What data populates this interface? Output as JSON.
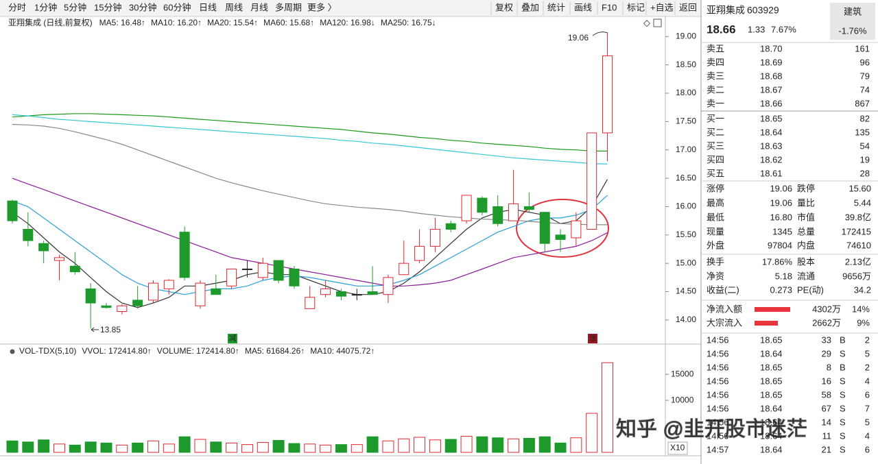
{
  "toolbar": {
    "periods": [
      "分时",
      "1分钟",
      "5分钟",
      "15分钟",
      "30分钟",
      "60分钟",
      "日线",
      "周线",
      "月线",
      "多周期",
      "更多 〉"
    ],
    "actions": [
      "复权",
      "叠加",
      "统计",
      "画线",
      "F10",
      "标记",
      "+自选",
      "返回"
    ]
  },
  "chart_data": [
    {
      "type": "candlestick",
      "title": "亚翔集成 (日线,前复权)",
      "open": [
        16.1,
        15.6,
        15.35,
        15.05,
        14.95,
        14.55,
        14.25,
        14.15,
        14.35,
        14.35,
        14.55,
        15.55,
        14.25,
        14.55,
        14.6,
        14.9,
        14.75,
        15.05,
        14.9,
        14.2,
        14.45,
        14.5,
        14.45,
        14.5,
        14.45,
        14.8,
        15.05,
        15.3,
        15.7,
        15.75,
        16.15,
        16.0,
        15.75,
        16.0,
        15.9,
        15.5,
        15.45,
        15.6,
        17.3
      ],
      "high": [
        16.12,
        15.9,
        15.4,
        15.15,
        15.2,
        14.65,
        14.3,
        14.28,
        14.6,
        14.7,
        14.72,
        15.65,
        14.7,
        14.8,
        14.9,
        15.05,
        15.1,
        15.05,
        14.95,
        14.6,
        14.7,
        14.55,
        14.55,
        14.95,
        14.8,
        15.4,
        15.6,
        15.8,
        15.75,
        16.2,
        16.18,
        16.2,
        16.65,
        16.25,
        15.9,
        15.6,
        15.9,
        17.3,
        19.06
      ],
      "low": [
        15.7,
        15.3,
        15.0,
        14.7,
        14.8,
        13.85,
        14.2,
        14.1,
        14.2,
        14.3,
        14.45,
        14.7,
        14.2,
        14.45,
        14.55,
        14.75,
        14.7,
        14.65,
        14.55,
        14.2,
        14.4,
        14.35,
        14.35,
        14.45,
        14.3,
        14.8,
        15.0,
        15.2,
        15.55,
        15.7,
        15.85,
        15.65,
        15.75,
        15.9,
        15.2,
        15.2,
        15.3,
        15.6,
        16.8
      ],
      "close": [
        15.75,
        15.4,
        15.22,
        15.1,
        14.85,
        14.3,
        14.22,
        14.25,
        14.25,
        14.65,
        14.7,
        14.75,
        14.65,
        14.45,
        14.9,
        14.9,
        15.0,
        14.7,
        14.6,
        14.4,
        14.55,
        14.42,
        14.45,
        14.45,
        14.75,
        15.0,
        15.3,
        15.6,
        15.6,
        16.2,
        15.9,
        15.7,
        16.05,
        15.95,
        15.35,
        15.42,
        15.75,
        17.3,
        18.66
      ],
      "series": [
        {
          "name": "MA5: 16.48",
          "arrow": "↑",
          "color": "#333333",
          "values": [
            15.9,
            15.7,
            15.45,
            15.2,
            15.0,
            14.75,
            14.5,
            14.3,
            14.22,
            14.3,
            14.4,
            14.6,
            14.6,
            14.65,
            14.7,
            14.8,
            14.85,
            14.8,
            14.8,
            14.7,
            14.6,
            14.5,
            14.45,
            14.45,
            14.5,
            14.65,
            14.85,
            15.1,
            15.35,
            15.6,
            15.8,
            15.9,
            15.95,
            15.9,
            15.85,
            15.7,
            15.75,
            16.0,
            16.48
          ]
        },
        {
          "name": "MA10: 16.20",
          "arrow": "↑",
          "color": "#2a9fd6",
          "values": [
            16.1,
            16.0,
            15.8,
            15.6,
            15.4,
            15.2,
            15.0,
            14.8,
            14.65,
            14.55,
            14.5,
            14.45,
            14.5,
            14.55,
            14.55,
            14.6,
            14.7,
            14.75,
            14.78,
            14.75,
            14.7,
            14.65,
            14.6,
            14.6,
            14.62,
            14.7,
            14.8,
            14.95,
            15.1,
            15.25,
            15.4,
            15.55,
            15.65,
            15.75,
            15.8,
            15.8,
            15.85,
            15.95,
            16.2
          ]
        },
        {
          "name": "MA20: 15.54",
          "arrow": "↑",
          "color": "#8b1a9b",
          "values": [
            16.5,
            16.4,
            16.3,
            16.2,
            16.1,
            16.0,
            15.9,
            15.8,
            15.7,
            15.6,
            15.5,
            15.4,
            15.3,
            15.2,
            15.1,
            15.05,
            15.0,
            14.95,
            14.9,
            14.85,
            14.8,
            14.75,
            14.7,
            14.65,
            14.6,
            14.6,
            14.62,
            14.65,
            14.7,
            14.8,
            14.9,
            15.0,
            15.1,
            15.15,
            15.2,
            15.25,
            15.3,
            15.4,
            15.54
          ]
        },
        {
          "name": "MA60: 15.68",
          "arrow": "↑",
          "color": "#888888",
          "values": [
            17.45,
            17.44,
            17.42,
            17.38,
            17.32,
            17.25,
            17.18,
            17.1,
            17.0,
            16.9,
            16.8,
            16.7,
            16.6,
            16.5,
            16.42,
            16.35,
            16.28,
            16.22,
            16.16,
            16.1,
            16.05,
            16.02,
            15.99,
            15.97,
            15.95,
            15.92,
            15.88,
            15.85,
            15.82,
            15.8,
            15.78,
            15.77,
            15.76,
            15.74,
            15.72,
            15.7,
            15.69,
            15.68,
            15.68
          ]
        },
        {
          "name": "MA120: 16.98",
          "arrow": "↓",
          "color": "#1a9a1a",
          "values": [
            17.58,
            17.6,
            17.62,
            17.63,
            17.64,
            17.64,
            17.63,
            17.62,
            17.61,
            17.6,
            17.58,
            17.56,
            17.54,
            17.52,
            17.5,
            17.48,
            17.46,
            17.44,
            17.42,
            17.4,
            17.38,
            17.36,
            17.33,
            17.3,
            17.28,
            17.25,
            17.22,
            17.2,
            17.17,
            17.15,
            17.12,
            17.1,
            17.08,
            17.06,
            17.03,
            17.01,
            17.0,
            16.98,
            16.98
          ]
        },
        {
          "name": "MA250: 16.75",
          "arrow": "↓",
          "color": "#34c8d0",
          "values": [
            17.62,
            17.6,
            17.57,
            17.54,
            17.52,
            17.5,
            17.48,
            17.46,
            17.44,
            17.42,
            17.4,
            17.38,
            17.36,
            17.34,
            17.32,
            17.3,
            17.28,
            17.26,
            17.24,
            17.22,
            17.2,
            17.17,
            17.15,
            17.12,
            17.1,
            17.07,
            17.04,
            17.01,
            16.98,
            16.95,
            16.92,
            16.89,
            16.86,
            16.84,
            16.82,
            16.8,
            16.78,
            16.76,
            16.75
          ]
        }
      ],
      "ylim": [
        13.6,
        19.1
      ],
      "yticks": [
        {
          "value": 14,
          "label": "14.00"
        },
        {
          "value": 14.5,
          "label": "14.50"
        },
        {
          "value": 15,
          "label": "15.00"
        },
        {
          "value": 15.5,
          "label": "15.50"
        },
        {
          "value": 16,
          "label": "16.00"
        },
        {
          "value": 16.5,
          "label": "16.50"
        },
        {
          "value": 17,
          "label": "17.00"
        },
        {
          "value": 17.5,
          "label": "17.50"
        },
        {
          "value": 18,
          "label": "18.00"
        },
        {
          "value": 18.5,
          "label": "18.50"
        },
        {
          "value": 19,
          "label": "19.00"
        }
      ],
      "annotations": [
        "19.06",
        "13.85",
        "减",
        "涨"
      ]
    },
    {
      "type": "bar",
      "title": "VOL-TDX(5,10)",
      "legend": [
        {
          "name": "VVOL: 172414.80",
          "arrow": "↑",
          "color": "#222222"
        },
        {
          "name": "VOLUME: 172414.80",
          "arrow": "↑",
          "color": "#2a7fd6"
        },
        {
          "name": "MA5: 61684.26",
          "arrow": "↑",
          "color": "#2a7fd6"
        },
        {
          "name": "MA10: 44075.72",
          "arrow": "↑",
          "color": "#8b1a9b"
        }
      ],
      "values": [
        2200,
        2000,
        2400,
        1600,
        1400,
        2000,
        1800,
        1400,
        1800,
        2200,
        1600,
        3000,
        2500,
        2000,
        1800,
        1500,
        1900,
        2300,
        1700,
        1600,
        1400,
        1500,
        1500,
        3000,
        2200,
        2600,
        2900,
        2400,
        2500,
        3100,
        3000,
        2800,
        2600,
        2700,
        3000,
        1800,
        2800,
        7500,
        17241
      ],
      "ylim": [
        0,
        19500
      ],
      "yticks": [
        10000,
        15000
      ],
      "scale_label": "X10"
    }
  ],
  "quote": {
    "name": "亚翔集成",
    "code": "603929",
    "sector": "建筑",
    "price": "18.66",
    "change": "1.33",
    "change_pct": "7.67%",
    "sector_pct": "-1.76%"
  },
  "order_book": [
    [
      "卖五",
      "18.70",
      "161"
    ],
    [
      "卖四",
      "18.69",
      "96"
    ],
    [
      "卖三",
      "18.68",
      "79"
    ],
    [
      "卖二",
      "18.67",
      "74"
    ],
    [
      "卖一",
      "18.66",
      "867"
    ],
    [
      "买一",
      "18.65",
      "82"
    ],
    [
      "买二",
      "18.64",
      "135"
    ],
    [
      "买三",
      "18.63",
      "54"
    ],
    [
      "买四",
      "18.62",
      "19"
    ],
    [
      "买五",
      "18.61",
      "28"
    ]
  ],
  "stats": [
    [
      "涨停",
      "19.06",
      "跌停",
      "15.60"
    ],
    [
      "最高",
      "19.06",
      "量比",
      "5.44"
    ],
    [
      "最低",
      "16.80",
      "市值",
      "39.8亿"
    ],
    [
      "现量",
      "1345",
      "总量",
      "172415"
    ],
    [
      "外盘",
      "97804",
      "内盘",
      "74610"
    ],
    [
      "换手",
      "17.86%",
      "股本",
      "2.13亿"
    ],
    [
      "净资",
      "5.18",
      "流通",
      "9656万"
    ],
    [
      "收益(二)",
      "0.273",
      "PE(动)",
      "34.2"
    ]
  ],
  "flows": [
    [
      "净流入额",
      "4302万",
      "14%"
    ],
    [
      "大宗流入",
      "2662万",
      "9%"
    ]
  ],
  "trades": [
    [
      "14:56",
      "18.65",
      "33",
      "B",
      "2"
    ],
    [
      "14:56",
      "18.64",
      "29",
      "S",
      "5"
    ],
    [
      "14:56",
      "18.65",
      "8",
      "B",
      "2"
    ],
    [
      "14:56",
      "18.65",
      "16",
      "S",
      "4"
    ],
    [
      "14:56",
      "18.65",
      "58",
      "S",
      "6"
    ],
    [
      "14:56",
      "18.64",
      "67",
      "S",
      "7"
    ],
    [
      "14:56",
      "18.64",
      "14",
      "S",
      "5"
    ],
    [
      "14:56",
      "18.64",
      "11",
      "S",
      "4"
    ],
    [
      "14:57",
      "18.64",
      "21",
      "S",
      "6"
    ]
  ],
  "watermark": "知乎 @韭开股市迷茫"
}
